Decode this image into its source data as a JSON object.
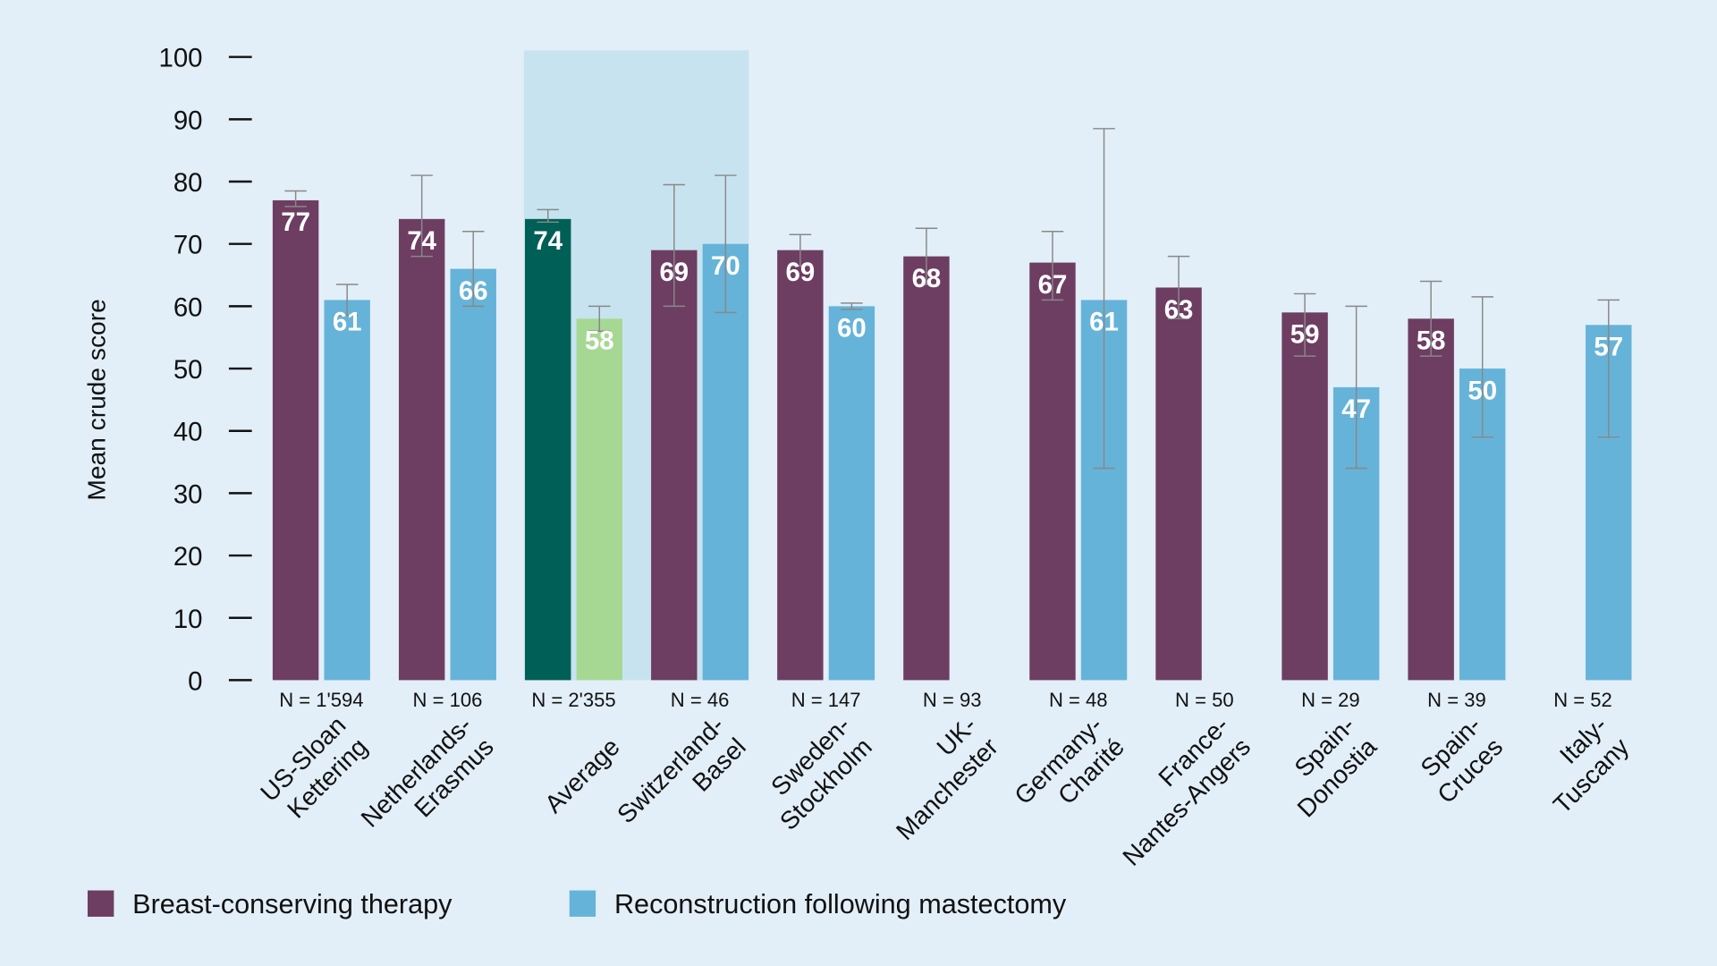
{
  "chart_data": {
    "type": "bar",
    "title": "",
    "xlabel": "",
    "ylabel": "Mean crude score",
    "ylim": [
      0,
      100
    ],
    "yticks": [
      0,
      10,
      20,
      30,
      40,
      50,
      60,
      70,
      80,
      90,
      100
    ],
    "grid": false,
    "legend_position": "bottom-left",
    "highlight_groups": [
      "Average",
      "Switzerland-Basel"
    ],
    "series": [
      {
        "name": "Breast-conserving therapy",
        "color": "#6e3d62"
      },
      {
        "name": "Reconstruction following mastectomy",
        "color": "#66b3d9"
      }
    ],
    "average_colors": {
      "bct": "#005f57",
      "recon": "#a6d894"
    },
    "groups": [
      {
        "label": [
          "US-Sloan",
          "Kettering"
        ],
        "n": "N = 1'594",
        "bct": 77,
        "bct_err": [
          76,
          78.5
        ],
        "recon": 61,
        "recon_err": [
          58.5,
          63.5
        ]
      },
      {
        "label": [
          "Netherlands-",
          "Erasmus"
        ],
        "n": "N = 106",
        "bct": 74,
        "bct_err": [
          68,
          81
        ],
        "recon": 66,
        "recon_err": [
          60,
          72
        ]
      },
      {
        "label": [
          "Average"
        ],
        "n": "N = 2'355",
        "bct": 74,
        "bct_err": [
          73.5,
          75.5
        ],
        "recon": 58,
        "recon_err": [
          56,
          60
        ],
        "is_average": true
      },
      {
        "label": [
          "Switzerland-",
          "Basel"
        ],
        "n": "N = 46",
        "bct": 69,
        "bct_err": [
          60,
          79.5
        ],
        "recon": 70,
        "recon_err": [
          59,
          81
        ]
      },
      {
        "label": [
          "Sweden-",
          "Stockholm"
        ],
        "n": "N = 147",
        "bct": 69,
        "bct_err": [
          66.5,
          71.5
        ],
        "recon": 60,
        "recon_err": [
          59.5,
          60.5
        ]
      },
      {
        "label": [
          "UK-",
          "Manchester"
        ],
        "n": "N = 93",
        "bct": 68,
        "bct_err": [
          63.5,
          72.5
        ],
        "recon": null,
        "recon_err": null
      },
      {
        "label": [
          "Germany-",
          "Charité"
        ],
        "n": "N = 48",
        "bct": 67,
        "bct_err": [
          61,
          72
        ],
        "recon": 61,
        "recon_err": [
          34,
          88.5
        ]
      },
      {
        "label": [
          "France-",
          "Nantes-Angers"
        ],
        "n": "N = 50",
        "bct": 63,
        "bct_err": [
          58,
          68
        ],
        "recon": null,
        "recon_err": null
      },
      {
        "label": [
          "Spain-",
          "Donostia"
        ],
        "n": "N = 29",
        "bct": 59,
        "bct_err": [
          52,
          62
        ],
        "recon": 47,
        "recon_err": [
          34,
          60
        ]
      },
      {
        "label": [
          "Spain-",
          "Cruces"
        ],
        "n": "N = 39",
        "bct": 58,
        "bct_err": [
          52,
          64
        ],
        "recon": 50,
        "recon_err": [
          39,
          61.5
        ]
      },
      {
        "label": [
          "Italy-",
          "Tuscany"
        ],
        "n": "N = 52",
        "bct": null,
        "bct_err": null,
        "recon": 57,
        "recon_err": [
          39,
          61
        ]
      }
    ],
    "legend": [
      "Breast-conserving therapy",
      "Reconstruction following mastectomy"
    ]
  },
  "colors": {
    "background": "#e2eff8",
    "highlight": "#c8e3f0",
    "errorbar": "#888888"
  }
}
